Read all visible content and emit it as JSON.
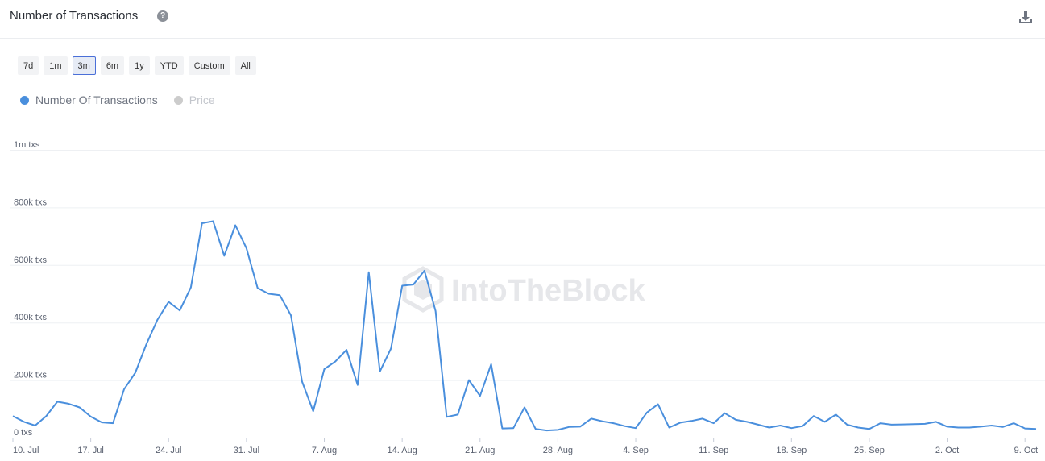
{
  "header": {
    "title": "Number of Transactions",
    "help_icon": "question-circle-icon",
    "download_icon": "download-icon"
  },
  "range_buttons": [
    {
      "label": "7d",
      "active": false
    },
    {
      "label": "1m",
      "active": false
    },
    {
      "label": "3m",
      "active": true
    },
    {
      "label": "6m",
      "active": false
    },
    {
      "label": "1y",
      "active": false
    },
    {
      "label": "YTD",
      "active": false
    },
    {
      "label": "Custom",
      "active": false
    },
    {
      "label": "All",
      "active": false
    }
  ],
  "legend": [
    {
      "label": "Number Of Transactions",
      "color": "#4a8fdd",
      "active": true
    },
    {
      "label": "Price",
      "color": "#cccccc",
      "active": false
    }
  ],
  "watermark": "IntoTheBlock",
  "chart_data": {
    "type": "line",
    "title": "Number of Transactions",
    "xlabel": "",
    "ylabel": "",
    "ylim": [
      0,
      1000000
    ],
    "y_ticks": [
      {
        "value": 0,
        "label": "0 txs"
      },
      {
        "value": 200000,
        "label": "200k txs"
      },
      {
        "value": 400000,
        "label": "400k txs"
      },
      {
        "value": 600000,
        "label": "600k txs"
      },
      {
        "value": 800000,
        "label": "800k txs"
      },
      {
        "value": 1000000,
        "label": "1m txs"
      }
    ],
    "x_tick_labels": [
      "10. Jul",
      "17. Jul",
      "24. Jul",
      "31. Jul",
      "7. Aug",
      "14. Aug",
      "21. Aug",
      "28. Aug",
      "4. Sep",
      "11. Sep",
      "18. Sep",
      "25. Sep",
      "2. Oct",
      "9. Oct"
    ],
    "x_start_label": "10. Jul",
    "grid": true,
    "series": [
      {
        "name": "Number Of Transactions",
        "color": "#4a8fdd",
        "values": [
          75000,
          55000,
          42000,
          75000,
          125000,
          118000,
          105000,
          73000,
          53000,
          50000,
          168000,
          225000,
          325000,
          410000,
          472000,
          442000,
          522000,
          745000,
          752000,
          632000,
          738000,
          658000,
          520000,
          500000,
          495000,
          425000,
          195000,
          92000,
          238000,
          265000,
          305000,
          183000,
          575000,
          230000,
          310000,
          528000,
          532000,
          580000,
          440000,
          72000,
          80000,
          200000,
          145000,
          255000,
          32000,
          33000,
          105000,
          30000,
          25000,
          27000,
          37000,
          38000,
          66000,
          57000,
          50000,
          40000,
          33000,
          87000,
          116000,
          35000,
          52000,
          58000,
          66000,
          50000,
          85000,
          62000,
          55000,
          45000,
          35000,
          42000,
          33000,
          40000,
          75000,
          55000,
          80000,
          45000,
          35000,
          30000,
          50000,
          45000,
          46000,
          47000,
          48000,
          55000,
          38000,
          35000,
          35000,
          38000,
          42000,
          37000,
          50000,
          32000,
          30000
        ]
      }
    ]
  }
}
